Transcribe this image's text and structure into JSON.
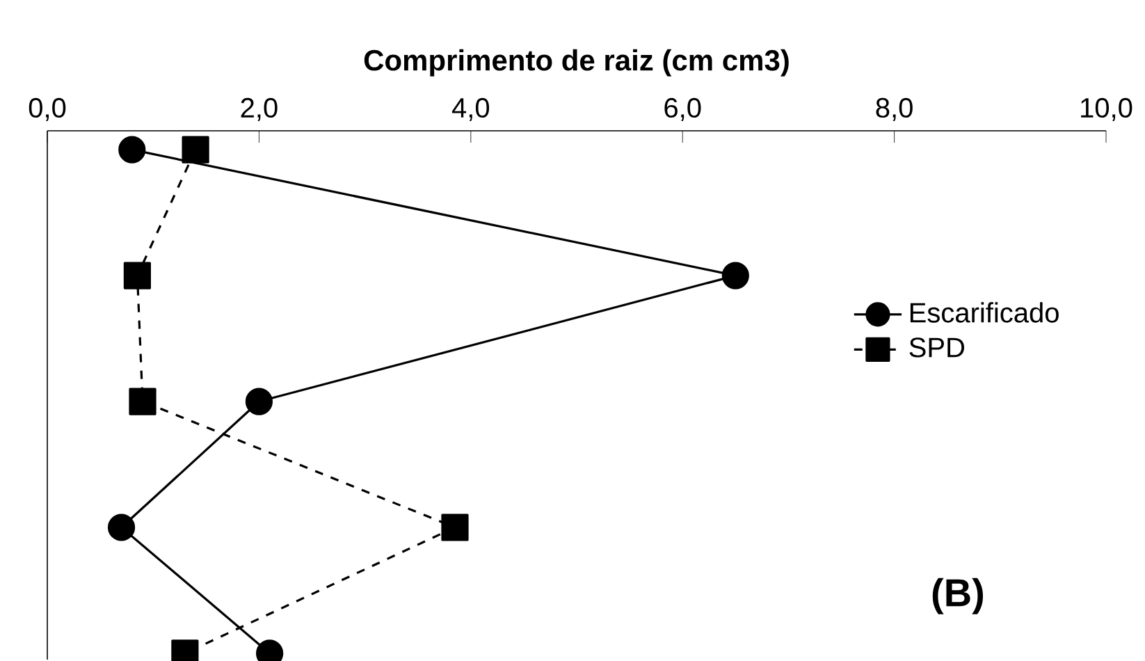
{
  "chart_data": {
    "type": "line",
    "orientation": "horizontal",
    "xlabel": "Comprimento de raiz  (cm  cm3)",
    "categories": [
      null,
      null,
      null,
      null,
      null
    ],
    "xlim": [
      0,
      10
    ],
    "xticks": [
      {
        "value": 0,
        "label": "0,0"
      },
      {
        "value": 2,
        "label": "2,0"
      },
      {
        "value": 4,
        "label": "4,0"
      },
      {
        "value": 6,
        "label": "6,0"
      },
      {
        "value": 8,
        "label": "8,0"
      },
      {
        "value": 10,
        "label": "10,0"
      }
    ],
    "series": [
      {
        "name": "Escarificado",
        "color": "#000000",
        "marker": "circle",
        "line_style": "solid",
        "values": [
          0.8,
          6.5,
          2.0,
          0.7,
          2.1
        ]
      },
      {
        "name": "SPD",
        "color": "#000000",
        "marker": "square",
        "line_style": "dashed",
        "values": [
          1.4,
          0.85,
          0.9,
          3.85,
          1.3
        ]
      }
    ],
    "legend": "right",
    "grid": false,
    "annotations": [
      "(B)"
    ]
  }
}
